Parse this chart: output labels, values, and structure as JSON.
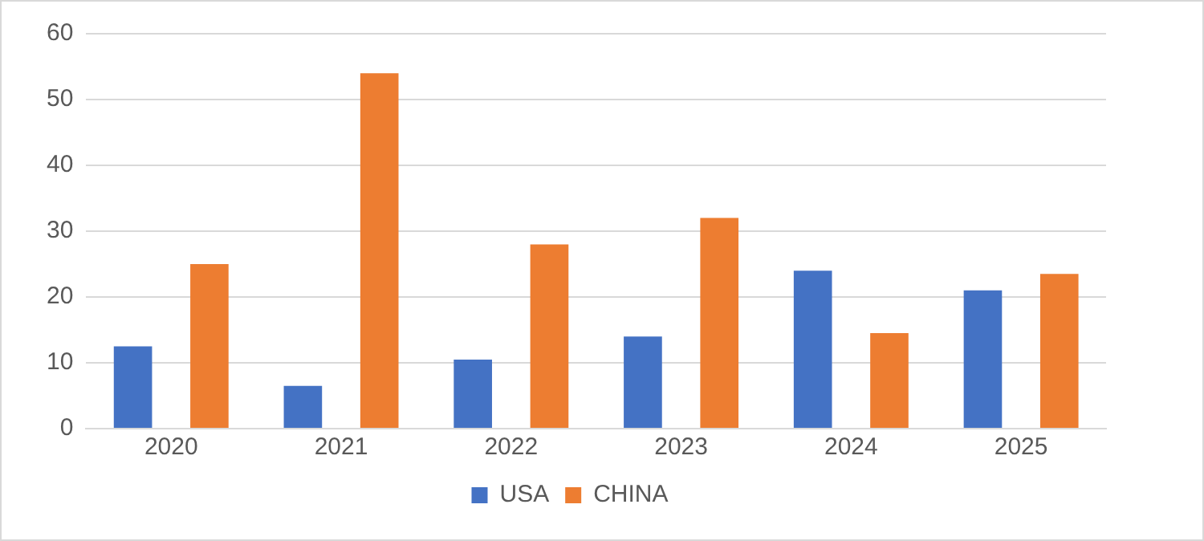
{
  "chart_data": {
    "type": "bar",
    "categories": [
      "2020",
      "2021",
      "2022",
      "2023",
      "2024",
      "2025"
    ],
    "series": [
      {
        "name": "USA",
        "color": "#4472c4",
        "values": [
          12.5,
          6.5,
          10.5,
          14,
          24,
          21
        ]
      },
      {
        "name": "CHINA",
        "color": "#ed7d31",
        "values": [
          25,
          54,
          28,
          32,
          14.5,
          23.5
        ]
      }
    ],
    "ylim": [
      0,
      60
    ],
    "yticks": [
      0,
      10,
      20,
      30,
      40,
      50,
      60
    ],
    "grid": "y",
    "legend": "bottom"
  }
}
